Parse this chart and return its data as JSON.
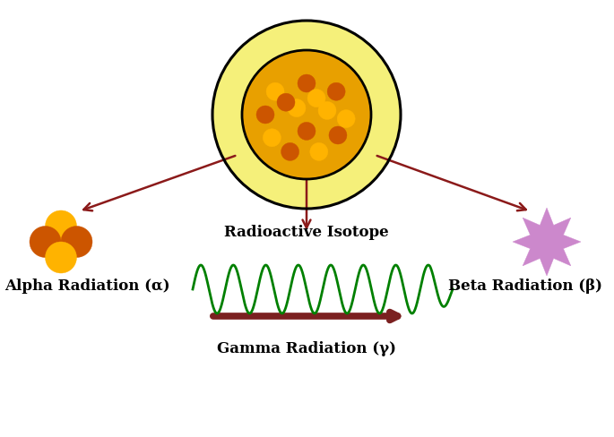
{
  "bg_color": "#ffffff",
  "arrow_color": "#8B1A1A",
  "nucleus_outer_color": "#F5F07A",
  "nucleus_inner_color": "#E8A000",
  "particle_color_light": "#FFB300",
  "particle_color_dark": "#CC5500",
  "alpha_color_top": "#FFB300",
  "alpha_color_left": "#CC5500",
  "alpha_color_right": "#CC5500",
  "alpha_color_bottom": "#FFB300",
  "beta_color": "#CC88CC",
  "gamma_color": "#008000",
  "gamma_arrow_color": "#7B2020",
  "label_alpha": "Alpha Radiation (α)",
  "label_beta": "Beta Radiation (β)",
  "label_gamma": "Gamma Radiation (γ)",
  "label_isotope": "Radioactive Isotope",
  "fontsize_labels": 12,
  "fontweight": "bold"
}
